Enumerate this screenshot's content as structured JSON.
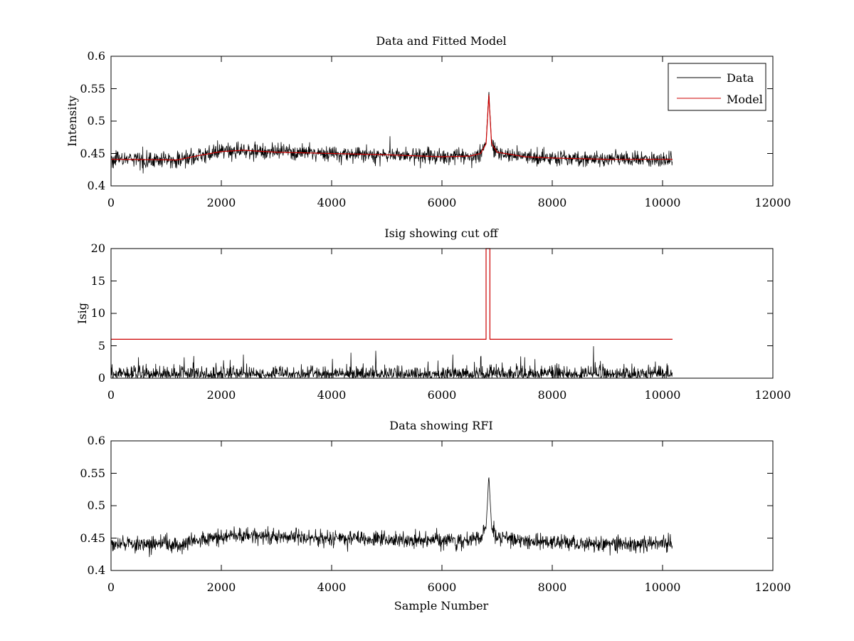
{
  "chart_data": [
    {
      "type": "line",
      "title": "Data and Fitted Model",
      "xlabel": "",
      "ylabel": "Intensity",
      "xlim": [
        0,
        12000
      ],
      "ylim": [
        0.4,
        0.6
      ],
      "xticks": [
        "0",
        "2000",
        "4000",
        "6000",
        "8000",
        "10000",
        "12000"
      ],
      "yticks": [
        "0.4",
        "0.45",
        "0.5",
        "0.55",
        "0.6"
      ],
      "legend": {
        "placement": "top-right",
        "entries": [
          "Data",
          "Model"
        ]
      },
      "series": [
        {
          "name": "Data",
          "color": "#000000",
          "kind": "noisy",
          "x_end": 10180,
          "noise": 0.006,
          "baseline_knots": [
            [
              0,
              0.441
            ],
            [
              1200,
              0.44
            ],
            [
              1600,
              0.447
            ],
            [
              2000,
              0.453
            ],
            [
              2400,
              0.455
            ],
            [
              3000,
              0.452
            ],
            [
              4000,
              0.45
            ],
            [
              5000,
              0.448
            ],
            [
              6000,
              0.445
            ],
            [
              6500,
              0.446
            ],
            [
              6700,
              0.45
            ],
            [
              6800,
              0.465
            ],
            [
              6850,
              0.547
            ],
            [
              6900,
              0.465
            ],
            [
              7000,
              0.452
            ],
            [
              7500,
              0.445
            ],
            [
              8000,
              0.443
            ],
            [
              9000,
              0.441
            ],
            [
              10180,
              0.441
            ]
          ]
        },
        {
          "name": "Model",
          "color": "#cc0000",
          "kind": "smooth",
          "x_end": 10180,
          "baseline_knots": [
            [
              0,
              0.441
            ],
            [
              1200,
              0.44
            ],
            [
              1600,
              0.447
            ],
            [
              2000,
              0.453
            ],
            [
              2400,
              0.455
            ],
            [
              3000,
              0.452
            ],
            [
              4000,
              0.45
            ],
            [
              5000,
              0.448
            ],
            [
              6000,
              0.445
            ],
            [
              6500,
              0.446
            ],
            [
              6700,
              0.45
            ],
            [
              6800,
              0.465
            ],
            [
              6850,
              0.54
            ],
            [
              6900,
              0.465
            ],
            [
              7000,
              0.452
            ],
            [
              7500,
              0.445
            ],
            [
              8000,
              0.443
            ],
            [
              9000,
              0.441
            ],
            [
              10180,
              0.441
            ]
          ]
        }
      ]
    },
    {
      "type": "line",
      "title": "Isig showing cut off",
      "xlabel": "",
      "ylabel": "Isig",
      "xlim": [
        0,
        12000
      ],
      "ylim": [
        0,
        20
      ],
      "xticks": [
        "0",
        "2000",
        "4000",
        "6000",
        "8000",
        "10000",
        "12000"
      ],
      "yticks": [
        "0",
        "5",
        "10",
        "15",
        "20"
      ],
      "series": [
        {
          "name": "Isig",
          "color": "#000000",
          "kind": "halfnoise",
          "x_end": 10180,
          "scale": 0.9,
          "spikes": [
            [
              500,
              3.2
            ],
            [
              1500,
              3.4
            ],
            [
              2400,
              3.6
            ],
            [
              4350,
              3.9
            ],
            [
              4800,
              4.2
            ],
            [
              6200,
              3.6
            ],
            [
              7500,
              3.2
            ],
            [
              8750,
              4.9
            ]
          ]
        },
        {
          "name": "Cutoff",
          "color": "#cc0000",
          "kind": "step",
          "points": [
            [
              0,
              6
            ],
            [
              6800,
              6
            ],
            [
              6800,
              20
            ],
            [
              6870,
              20
            ],
            [
              6870,
              6
            ],
            [
              10180,
              6
            ]
          ]
        }
      ]
    },
    {
      "type": "line",
      "title": "Data showing RFI",
      "xlabel": "Sample Number",
      "ylabel": "",
      "xlim": [
        0,
        12000
      ],
      "ylim": [
        0.4,
        0.6
      ],
      "xticks": [
        "0",
        "2000",
        "4000",
        "6000",
        "8000",
        "10000",
        "12000"
      ],
      "yticks": [
        "0.4",
        "0.45",
        "0.5",
        "0.55",
        "0.6"
      ],
      "series": [
        {
          "name": "Data",
          "color": "#000000",
          "kind": "noisy",
          "x_end": 10180,
          "noise": 0.006,
          "baseline_knots": [
            [
              0,
              0.441
            ],
            [
              1200,
              0.44
            ],
            [
              1600,
              0.447
            ],
            [
              2000,
              0.453
            ],
            [
              2400,
              0.455
            ],
            [
              3000,
              0.452
            ],
            [
              4000,
              0.45
            ],
            [
              5000,
              0.448
            ],
            [
              6000,
              0.445
            ],
            [
              6500,
              0.446
            ],
            [
              6700,
              0.45
            ],
            [
              6800,
              0.465
            ],
            [
              6850,
              0.547
            ],
            [
              6900,
              0.465
            ],
            [
              7000,
              0.452
            ],
            [
              7500,
              0.445
            ],
            [
              8000,
              0.443
            ],
            [
              9000,
              0.441
            ],
            [
              10180,
              0.441
            ]
          ]
        }
      ]
    }
  ]
}
